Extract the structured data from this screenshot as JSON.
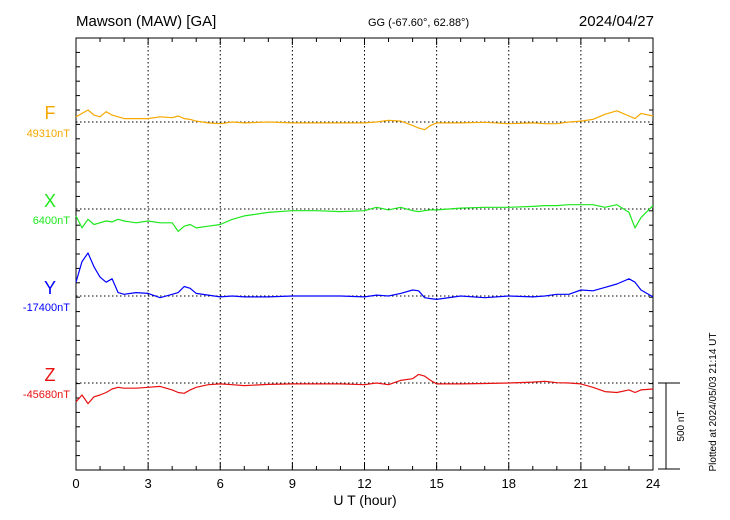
{
  "header": {
    "station": "Mawson (MAW)  [GA]",
    "coords": "GG (-67.60°,  62.88°)",
    "date": "2024/04/27"
  },
  "plotted_note": "Plotted at 2024/05/03 21:14 UT",
  "scale_label": "500 nT",
  "chart_data": {
    "type": "line",
    "title": "Mawson (MAW)  [GA]",
    "xlabel": "U T (hour)",
    "ylabel": "",
    "xlim": [
      0,
      24
    ],
    "x_ticks": [
      "0",
      "3",
      "6",
      "9",
      "12",
      "15",
      "18",
      "21",
      "24"
    ],
    "x": [
      0,
      0.25,
      0.5,
      0.75,
      1,
      1.25,
      1.5,
      1.75,
      2,
      2.5,
      3,
      3.5,
      4,
      4.25,
      4.5,
      4.75,
      5,
      5.5,
      6,
      6.5,
      7,
      8,
      9,
      10,
      11,
      12,
      12.5,
      13,
      13.5,
      14,
      14.25,
      14.5,
      14.75,
      15,
      16,
      17,
      18,
      19,
      19.5,
      20,
      20.5,
      21,
      21.5,
      22,
      22.5,
      23,
      23.25,
      23.5,
      24
    ],
    "scale_nT": 500,
    "series": [
      {
        "name": "F",
        "baseline_label": "49310nT",
        "color": "#f5a800",
        "values": [
          49340,
          49360,
          49380,
          49350,
          49340,
          49370,
          49350,
          49340,
          49330,
          49330,
          49330,
          49340,
          49335,
          49345,
          49330,
          49325,
          49315,
          49305,
          49300,
          49310,
          49305,
          49310,
          49305,
          49305,
          49305,
          49305,
          49310,
          49320,
          49315,
          49290,
          49275,
          49265,
          49290,
          49305,
          49305,
          49308,
          49300,
          49305,
          49300,
          49300,
          49310,
          49315,
          49325,
          49355,
          49375,
          49345,
          49330,
          49360,
          49345
        ]
      },
      {
        "name": "X",
        "baseline_label": "6400nT",
        "color": "#1ee81e",
        "values": [
          6360,
          6290,
          6340,
          6310,
          6320,
          6330,
          6325,
          6340,
          6330,
          6320,
          6330,
          6320,
          6320,
          6270,
          6300,
          6310,
          6290,
          6300,
          6310,
          6340,
          6360,
          6380,
          6390,
          6390,
          6385,
          6390,
          6410,
          6395,
          6410,
          6390,
          6385,
          6390,
          6395,
          6395,
          6405,
          6410,
          6410,
          6415,
          6420,
          6420,
          6425,
          6425,
          6425,
          6410,
          6425,
          6380,
          6290,
          6350,
          6420
        ]
      },
      {
        "name": "Y",
        "baseline_label": "-17400nT",
        "color": "#0000ff",
        "values": [
          -17320,
          -17200,
          -17150,
          -17230,
          -17290,
          -17320,
          -17300,
          -17380,
          -17390,
          -17380,
          -17385,
          -17410,
          -17390,
          -17380,
          -17345,
          -17355,
          -17385,
          -17395,
          -17405,
          -17400,
          -17405,
          -17405,
          -17400,
          -17400,
          -17400,
          -17405,
          -17395,
          -17400,
          -17385,
          -17365,
          -17370,
          -17410,
          -17415,
          -17420,
          -17400,
          -17410,
          -17400,
          -17405,
          -17400,
          -17390,
          -17390,
          -17365,
          -17370,
          -17350,
          -17330,
          -17300,
          -17320,
          -17365,
          -17405
        ]
      },
      {
        "name": "Z",
        "baseline_label": "-45680nT",
        "color": "#e81010",
        "values": [
          -45790,
          -45750,
          -45800,
          -45760,
          -45750,
          -45735,
          -45715,
          -45705,
          -45710,
          -45710,
          -45705,
          -45700,
          -45720,
          -45735,
          -45740,
          -45720,
          -45705,
          -45690,
          -45685,
          -45690,
          -45695,
          -45688,
          -45685,
          -45685,
          -45685,
          -45690,
          -45680,
          -45690,
          -45665,
          -45655,
          -45630,
          -45640,
          -45665,
          -45685,
          -45685,
          -45683,
          -45680,
          -45675,
          -45670,
          -45678,
          -45680,
          -45685,
          -45705,
          -45730,
          -45735,
          -45720,
          -45735,
          -45720,
          -45715
        ]
      }
    ]
  }
}
